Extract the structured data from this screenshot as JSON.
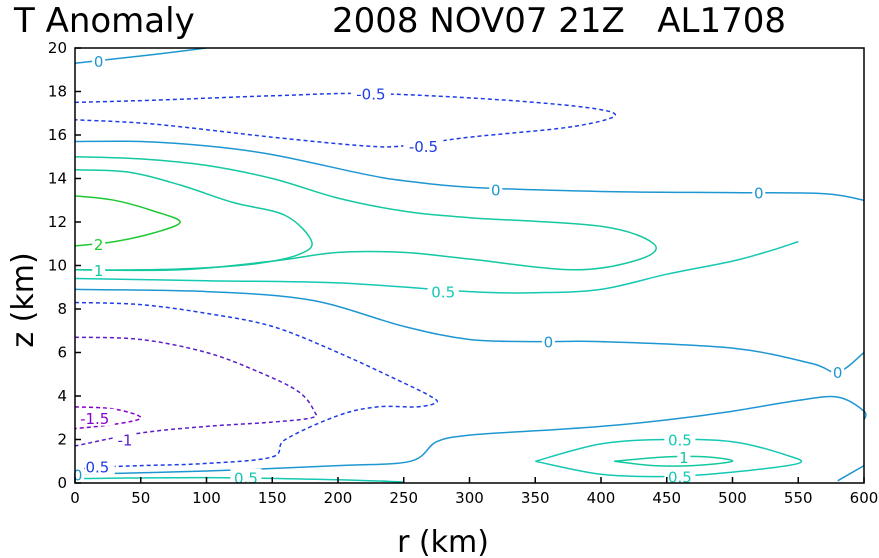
{
  "chart_data": {
    "type": "contour",
    "title_left": "T Anomaly",
    "title_right": "2008 NOV07 21Z   AL1708",
    "xlabel": "r (km)",
    "ylabel": "z (km)",
    "xlim": [
      0,
      600
    ],
    "ylim": [
      0,
      20
    ],
    "x_ticks": [
      "0",
      "50",
      "100",
      "150",
      "200",
      "250",
      "300",
      "350",
      "400",
      "450",
      "500",
      "550",
      "600"
    ],
    "y_ticks": [
      "0",
      "2",
      "4",
      "6",
      "8",
      "10",
      "12",
      "14",
      "16",
      "18",
      "20"
    ],
    "colors": {
      "neg1_5": "#8800cc",
      "neg1": "#5a1ec8",
      "neg0_5": "#1e3ce6",
      "zero": "#1e96d2",
      "pos0_5": "#14c8b4",
      "pos1": "#14c8a0",
      "pos2": "#1ec832"
    },
    "contours": [
      {
        "name": "c1",
        "color_key": "zero",
        "dashed": false,
        "points": [
          [
            0,
            19.3
          ],
          [
            30,
            19.5
          ],
          [
            60,
            19.7
          ],
          [
            100,
            20
          ]
        ]
      },
      {
        "name": "c2",
        "color_key": "neg0_5",
        "dashed": true,
        "points": [
          [
            0,
            17.5
          ],
          [
            60,
            17.6
          ],
          [
            150,
            17.8
          ],
          [
            230,
            17.9
          ],
          [
            350,
            17.5
          ],
          [
            410,
            17.0
          ],
          [
            380,
            16.4
          ],
          [
            300,
            15.9
          ],
          [
            250,
            15.5
          ],
          [
            220,
            15.5
          ],
          [
            150,
            15.9
          ],
          [
            60,
            16.5
          ],
          [
            0,
            16.7
          ]
        ]
      },
      {
        "name": "c3",
        "color_key": "zero",
        "dashed": false,
        "points": [
          [
            0,
            15.7
          ],
          [
            50,
            15.7
          ],
          [
            100,
            15.5
          ],
          [
            150,
            15.1
          ],
          [
            220,
            14.2
          ],
          [
            250,
            13.9
          ],
          [
            300,
            13.6
          ],
          [
            400,
            13.4
          ],
          [
            500,
            13.35
          ],
          [
            570,
            13.3
          ],
          [
            600,
            13.0
          ]
        ]
      },
      {
        "name": "c4",
        "color_key": "pos1",
        "dashed": false,
        "points": [
          [
            0,
            15.0
          ],
          [
            50,
            14.9
          ],
          [
            100,
            14.6
          ],
          [
            150,
            14.0
          ],
          [
            200,
            13.1
          ],
          [
            250,
            12.5
          ],
          [
            300,
            12.2
          ],
          [
            400,
            11.8
          ],
          [
            440,
            11.0
          ],
          [
            430,
            10.3
          ],
          [
            380,
            9.8
          ],
          [
            300,
            10.3
          ],
          [
            250,
            10.6
          ],
          [
            200,
            10.6
          ],
          [
            150,
            10.2
          ],
          [
            80,
            9.8
          ],
          [
            0,
            9.8
          ]
        ]
      },
      {
        "name": "c5",
        "color_key": "pos1",
        "dashed": false,
        "points": [
          [
            0,
            14.4
          ],
          [
            40,
            14.3
          ],
          [
            80,
            13.7
          ],
          [
            120,
            12.9
          ],
          [
            160,
            12.3
          ],
          [
            180,
            11.1
          ],
          [
            170,
            10.5
          ],
          [
            140,
            10.1
          ],
          [
            100,
            9.9
          ],
          [
            50,
            9.8
          ],
          [
            0,
            9.8
          ]
        ]
      },
      {
        "name": "c6",
        "color_key": "pos2",
        "dashed": false,
        "points": [
          [
            0,
            13.2
          ],
          [
            30,
            13.0
          ],
          [
            60,
            12.5
          ],
          [
            80,
            12.0
          ],
          [
            60,
            11.5
          ],
          [
            30,
            11.1
          ],
          [
            0,
            10.9
          ]
        ]
      },
      {
        "name": "c7",
        "color_key": "pos0_5",
        "dashed": false,
        "points": [
          [
            0,
            9.4
          ],
          [
            100,
            9.3
          ],
          [
            200,
            9.2
          ],
          [
            300,
            8.8
          ],
          [
            350,
            8.75
          ],
          [
            400,
            8.9
          ],
          [
            450,
            9.6
          ],
          [
            500,
            10.2
          ],
          [
            530,
            10.7
          ],
          [
            550,
            11.1
          ]
        ]
      },
      {
        "name": "c8",
        "color_key": "zero",
        "dashed": false,
        "points": [
          [
            0,
            8.9
          ],
          [
            100,
            8.8
          ],
          [
            180,
            8.4
          ],
          [
            250,
            7.2
          ],
          [
            300,
            6.6
          ],
          [
            350,
            6.5
          ],
          [
            400,
            6.5
          ],
          [
            500,
            6.2
          ],
          [
            560,
            5.5
          ],
          [
            580,
            5.1
          ],
          [
            600,
            6.0
          ]
        ]
      },
      {
        "name": "c9",
        "color_key": "neg0_5",
        "dashed": true,
        "points": [
          [
            0,
            8.3
          ],
          [
            50,
            8.2
          ],
          [
            100,
            7.8
          ],
          [
            150,
            7.2
          ],
          [
            200,
            6.0
          ],
          [
            250,
            4.6
          ],
          [
            270,
            4.0
          ],
          [
            275,
            3.7
          ],
          [
            260,
            3.5
          ],
          [
            230,
            3.5
          ],
          [
            200,
            3.1
          ],
          [
            160,
            2.0
          ],
          [
            150,
            1.2
          ],
          [
            100,
            0.9
          ],
          [
            50,
            0.8
          ],
          [
            0,
            0.7
          ]
        ]
      },
      {
        "name": "c10",
        "color_key": "neg1",
        "dashed": true,
        "points": [
          [
            0,
            6.7
          ],
          [
            50,
            6.6
          ],
          [
            100,
            6.0
          ],
          [
            140,
            5.1
          ],
          [
            170,
            4.2
          ],
          [
            182,
            3.3
          ],
          [
            180,
            3.0
          ],
          [
            150,
            2.8
          ],
          [
            100,
            2.6
          ],
          [
            50,
            2.3
          ],
          [
            0,
            1.7
          ]
        ]
      },
      {
        "name": "c11",
        "color_key": "neg1_5",
        "dashed": true,
        "points": [
          [
            0,
            3.5
          ],
          [
            30,
            3.4
          ],
          [
            50,
            3.0
          ],
          [
            30,
            2.7
          ],
          [
            0,
            2.5
          ]
        ]
      },
      {
        "name": "c12",
        "color_key": "zero",
        "dashed": false,
        "points": [
          [
            0,
            0.4
          ],
          [
            100,
            0.55
          ],
          [
            200,
            0.8
          ],
          [
            255,
            1.0
          ],
          [
            275,
            1.9
          ],
          [
            300,
            2.2
          ],
          [
            350,
            2.4
          ],
          [
            400,
            2.6
          ],
          [
            450,
            2.9
          ],
          [
            500,
            3.3
          ],
          [
            550,
            3.8
          ],
          [
            580,
            3.95
          ],
          [
            600,
            3.3
          ],
          [
            600,
            2.9
          ]
        ]
      },
      {
        "name": "c13",
        "color_key": "pos0_5",
        "dashed": false,
        "points": [
          [
            350,
            1.0
          ],
          [
            400,
            1.8
          ],
          [
            450,
            2.0
          ],
          [
            500,
            1.9
          ],
          [
            540,
            1.3
          ],
          [
            550,
            0.9
          ],
          [
            500,
            0.5
          ],
          [
            450,
            0.3
          ],
          [
            400,
            0.4
          ],
          [
            350,
            1.0
          ]
        ]
      },
      {
        "name": "c14",
        "color_key": "pos1",
        "dashed": false,
        "points": [
          [
            410,
            1.0
          ],
          [
            450,
            1.2
          ],
          [
            480,
            1.2
          ],
          [
            500,
            1.0
          ],
          [
            470,
            0.8
          ],
          [
            440,
            0.8
          ],
          [
            410,
            1.0
          ]
        ]
      },
      {
        "name": "c15",
        "color_key": "pos0_5",
        "dashed": false,
        "points": [
          [
            0,
            0.2
          ],
          [
            100,
            0.25
          ],
          [
            200,
            0.15
          ],
          [
            250,
            0.05
          ]
        ]
      },
      {
        "name": "c16",
        "color_key": "zero",
        "dashed": false,
        "points": [
          [
            580,
            0.1
          ],
          [
            600,
            0.8
          ]
        ]
      }
    ],
    "labels": [
      {
        "text": "0",
        "color_key": "zero",
        "x": 18,
        "y": 19.4
      },
      {
        "text": "-0.5",
        "color_key": "neg0_5",
        "x": 225,
        "y": 17.9
      },
      {
        "text": "-0.5",
        "color_key": "neg0_5",
        "x": 265,
        "y": 15.5
      },
      {
        "text": "0",
        "color_key": "zero",
        "x": 320,
        "y": 13.5
      },
      {
        "text": "0",
        "color_key": "zero",
        "x": 520,
        "y": 13.35
      },
      {
        "text": "2",
        "color_key": "pos2",
        "x": 18,
        "y": 11.0
      },
      {
        "text": "1",
        "color_key": "pos1",
        "x": 18,
        "y": 9.8
      },
      {
        "text": "0.5",
        "color_key": "pos0_5",
        "x": 280,
        "y": 8.8
      },
      {
        "text": "0",
        "color_key": "zero",
        "x": 360,
        "y": 6.5
      },
      {
        "text": "0",
        "color_key": "zero",
        "x": 580,
        "y": 5.1
      },
      {
        "text": "-1.5",
        "color_key": "neg1_5",
        "x": 15,
        "y": 3.0
      },
      {
        "text": "-1",
        "color_key": "neg1",
        "x": 38,
        "y": 2.0
      },
      {
        "text": "-0.5",
        "color_key": "neg0_5",
        "x": 15,
        "y": 0.75
      },
      {
        "text": "0",
        "color_key": "zero",
        "x": 2,
        "y": 0.4
      },
      {
        "text": "0.5",
        "color_key": "pos0_5",
        "x": 130,
        "y": 0.25
      },
      {
        "text": "0.5",
        "color_key": "pos0_5",
        "x": 460,
        "y": 2.0
      },
      {
        "text": "1",
        "color_key": "pos1",
        "x": 463,
        "y": 1.2
      },
      {
        "text": "0.5",
        "color_key": "pos0_5",
        "x": 460,
        "y": 0.3
      }
    ]
  }
}
